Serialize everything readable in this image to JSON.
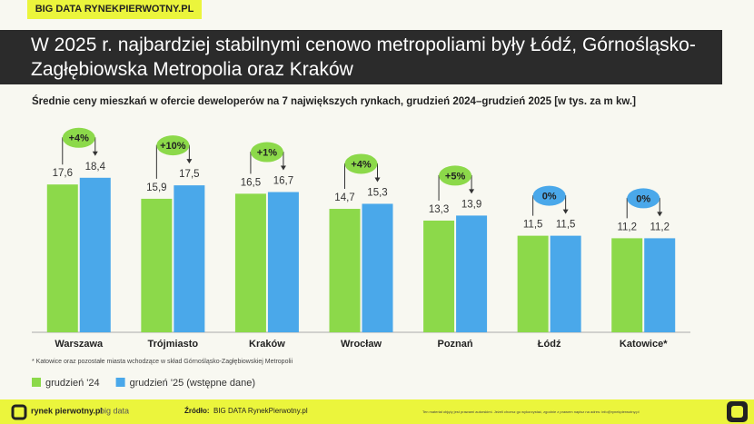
{
  "header": {
    "tag": "BIG DATA RYNEKPIERWOTNY.PL"
  },
  "chart_data": {
    "type": "bar",
    "title": "W 2025 r. najbardziej stabilnymi cenowo metropoliami były Łódź, Górnośląsko-Zagłębiowska Metropolia oraz Kraków",
    "subtitle": "Średnie ceny mieszkań w ofercie deweloperów na 7 największych rynkach, grudzień 2024–grudzień 2025 [w tys. za m kw.]",
    "categories": [
      "Warszawa",
      "Trójmiasto",
      "Kraków",
      "Wrocław",
      "Poznań",
      "Łódź",
      "Katowice*"
    ],
    "series": [
      {
        "name": "grudzień '24",
        "color": "#8cd94a",
        "values": [
          17.6,
          15.9,
          16.5,
          14.7,
          13.3,
          11.5,
          11.2
        ],
        "value_labels": [
          "17,6",
          "15,9",
          "16,5",
          "14,7",
          "13,3",
          "11,5",
          "11,2"
        ]
      },
      {
        "name": "grudzień '25 (wstępne dane)",
        "color": "#4aa8ea",
        "values": [
          18.4,
          17.5,
          16.7,
          15.3,
          13.9,
          11.5,
          11.2
        ],
        "value_labels": [
          "18,4",
          "17,5",
          "16,7",
          "15,3",
          "13,9",
          "11,5",
          "11,2"
        ]
      }
    ],
    "annotations": [
      {
        "label": "+4%",
        "color": "#8cd94a"
      },
      {
        "label": "+10%",
        "color": "#8cd94a"
      },
      {
        "label": "+1%",
        "color": "#8cd94a"
      },
      {
        "label": "+4%",
        "color": "#8cd94a"
      },
      {
        "label": "+5%",
        "color": "#8cd94a"
      },
      {
        "label": "0%",
        "color": "#4aa8ea"
      },
      {
        "label": "0%",
        "color": "#4aa8ea"
      }
    ],
    "ylim": [
      0,
      20
    ],
    "footnote": "* Katowice oraz pozostałe miasta wchodzące w skład Górnośląsko-Zagłębiowskiej Metropolii"
  },
  "footer": {
    "logo": "rynek pierwotny.pl",
    "logo_sub": "big data",
    "source_label": "Źródło:",
    "source": "BIG DATA RynekPierwotny.pl",
    "disclaimer": "Ten materiał objęty jest prawami autorskimi. Jeżeli chcesz go wykorzystać, zgodnie z prawem napisz na adres: info@rynekpierwotny.pl"
  }
}
